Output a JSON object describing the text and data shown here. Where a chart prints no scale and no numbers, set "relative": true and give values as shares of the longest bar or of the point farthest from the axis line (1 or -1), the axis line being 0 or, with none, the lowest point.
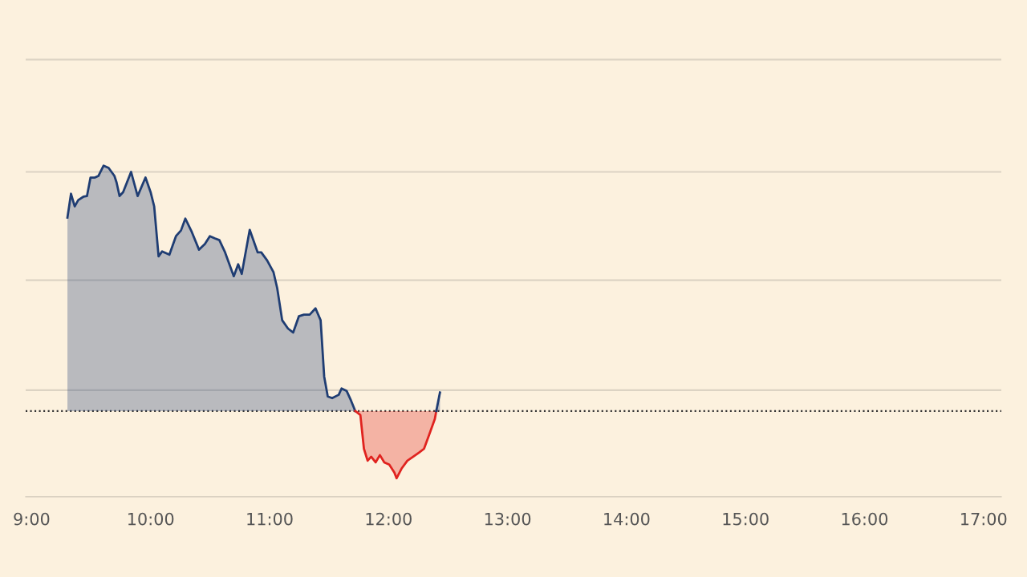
{
  "chart_data": {
    "type": "area",
    "relative": true,
    "series": [
      {
        "color": "#1f3d73",
        "x": [
          9.301,
          9.331,
          9.362,
          9.392,
          9.435,
          9.465,
          9.495,
          9.532,
          9.562,
          9.605,
          9.647,
          9.696,
          9.714,
          9.739,
          9.769,
          9.836,
          9.891,
          9.957,
          10.0,
          10.03,
          10.067,
          10.097,
          10.158,
          10.213,
          10.255,
          10.292,
          10.347,
          10.407,
          10.456,
          10.498,
          10.541,
          10.578,
          10.626,
          10.699,
          10.736,
          10.766,
          10.833,
          10.9,
          10.93,
          10.979,
          11.033,
          11.064,
          11.106,
          11.155,
          11.198,
          11.246,
          11.289,
          11.337,
          11.386,
          11.429,
          11.459,
          11.489,
          11.526,
          11.581,
          11.605,
          11.647,
          11.684,
          11.72
        ],
        "values": [
          0.843,
          0.915,
          0.877,
          0.896,
          0.906,
          0.908,
          0.964,
          0.964,
          0.969,
          1,
          0.993,
          0.969,
          0.949,
          0.908,
          0.92,
          0.981,
          0.908,
          0.964,
          0.92,
          0.877,
          0.726,
          0.741,
          0.731,
          0.787,
          0.804,
          0.84,
          0.799,
          0.746,
          0.763,
          0.787,
          0.78,
          0.775,
          0.738,
          0.666,
          0.702,
          0.673,
          0.806,
          0.738,
          0.738,
          0.714,
          0.678,
          0.63,
          0.533,
          0.508,
          0.496,
          0.545,
          0.55,
          0.55,
          0.569,
          0.533,
          0.363,
          0.303,
          0.298,
          0.308,
          0.327,
          0.32,
          0.291,
          0.259
        ]
      },
      {
        "color": "#e0231f",
        "x": [
          11.72,
          11.763,
          11.793,
          11.824,
          11.854,
          11.891,
          11.927,
          11.964,
          12.006,
          12.049,
          12.067,
          12.109,
          12.158,
          12.207,
          12.255,
          12.298,
          12.34,
          12.389,
          12.401
        ],
        "values": [
          0.259,
          0.247,
          0.145,
          0.109,
          0.121,
          0.104,
          0.126,
          0.104,
          0.097,
          0.073,
          0.056,
          0.085,
          0.109,
          0.121,
          0.133,
          0.145,
          0.186,
          0.235,
          0.259
        ]
      },
      {
        "color": "#1f3d73",
        "x": [
          12.401,
          12.432
        ],
        "values": [
          0.259,
          0.315
        ]
      }
    ],
    "xlim": [
      8.95,
      17.15
    ],
    "xticks": [
      {
        "value": 9,
        "label": "9:00"
      },
      {
        "value": 10,
        "label": "10:00"
      },
      {
        "value": 11,
        "label": "11:00"
      },
      {
        "value": 12,
        "label": "12:00"
      },
      {
        "value": 13,
        "label": "13:00"
      },
      {
        "value": 14,
        "label": "14:00"
      },
      {
        "value": 15,
        "label": "15:00"
      },
      {
        "value": 16,
        "label": "16:00"
      },
      {
        "value": 17,
        "label": "17:00"
      }
    ],
    "ref_lines": [
      {
        "axis": "y",
        "value": 0.259,
        "color": "#333333",
        "line_style": "dotted"
      },
      {
        "axis": "y",
        "value": 0.322,
        "color": "#dcd3c3",
        "line_style": "solid"
      },
      {
        "axis": "y",
        "value": 0.654,
        "color": "#dcd3c3",
        "line_style": "solid"
      },
      {
        "axis": "y",
        "value": 0.981,
        "color": "#dcd3c3",
        "line_style": "solid"
      },
      {
        "axis": "y",
        "value": 1.32,
        "color": "#dcd3c3",
        "line_style": "solid"
      }
    ],
    "legend": false,
    "marker": "none",
    "line_style": "solid"
  }
}
